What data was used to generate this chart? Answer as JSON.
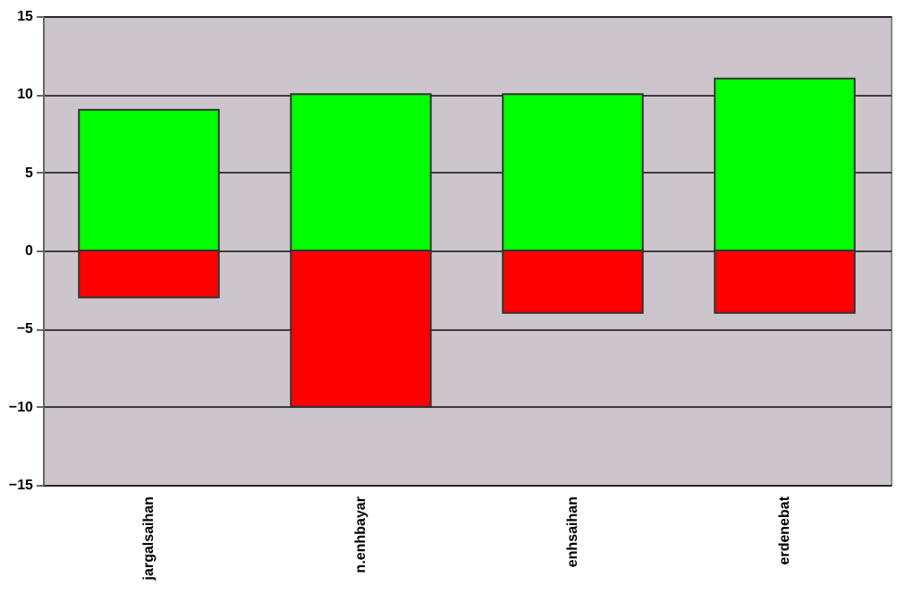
{
  "chart_data": {
    "type": "bar",
    "stacked": true,
    "categories": [
      "jargalsaihan",
      "n.enhbayar",
      "enhsaihan",
      "erdenebat"
    ],
    "series": [
      {
        "color": "#00ff00",
        "values": [
          9,
          10,
          10,
          11
        ]
      },
      {
        "color": "#ff0000",
        "values": [
          -3,
          -10,
          -4,
          -4
        ]
      }
    ],
    "ylim": [
      -15,
      15
    ],
    "yticks": [
      -15,
      -10,
      -5,
      0,
      5,
      10,
      15
    ],
    "grid": "y"
  }
}
